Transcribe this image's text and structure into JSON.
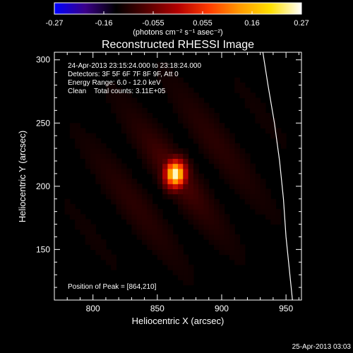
{
  "chart_data": {
    "type": "heatmap",
    "title": "Reconstructed RHESSI Image",
    "xlabel": "Heliocentric X (arcsec)",
    "ylabel": "Heliocentric Y (arcsec)",
    "xlim": [
      770,
      962
    ],
    "ylim": [
      110,
      306
    ],
    "x_ticks": [
      800,
      850,
      900,
      950
    ],
    "y_ticks": [
      150,
      200,
      250,
      300
    ],
    "colorbar": {
      "ticks": [
        "-0.27",
        "-0.16",
        "-0.055",
        "0.055",
        "0.16",
        "0.27"
      ],
      "range": [
        -0.27,
        0.27
      ],
      "unit": "(photons cm⁻² s⁻¹ asec⁻²)",
      "colors": [
        "#0000ff",
        "#3a0088",
        "#000000",
        "#550000",
        "#b30000",
        "#ff3b00",
        "#ff9a00",
        "#ffe000",
        "#ffffff"
      ]
    },
    "annotations": [
      "24-Apr-2013 23:15:24.000 to 23:18:24.000",
      "Detectors: 3F 5F 6F 7F 8F 9F, Att 0",
      "Energy Range: 6.0 - 12.0 keV",
      "Clean    Total counts: 3.11E+05"
    ],
    "peak_label": "Position of Peak = [864,210]",
    "source": {
      "x": 864,
      "y": 210,
      "peak": 0.27,
      "sigma_x": 6,
      "sigma_y": 8
    },
    "limb": [
      [
        932,
        306
      ],
      [
        936,
        280
      ],
      [
        941,
        250
      ],
      [
        945,
        220
      ],
      [
        948,
        190
      ],
      [
        950,
        160
      ],
      [
        953,
        130
      ],
      [
        955,
        110
      ]
    ],
    "timestamp": "25-Apr-2013 03:03"
  }
}
